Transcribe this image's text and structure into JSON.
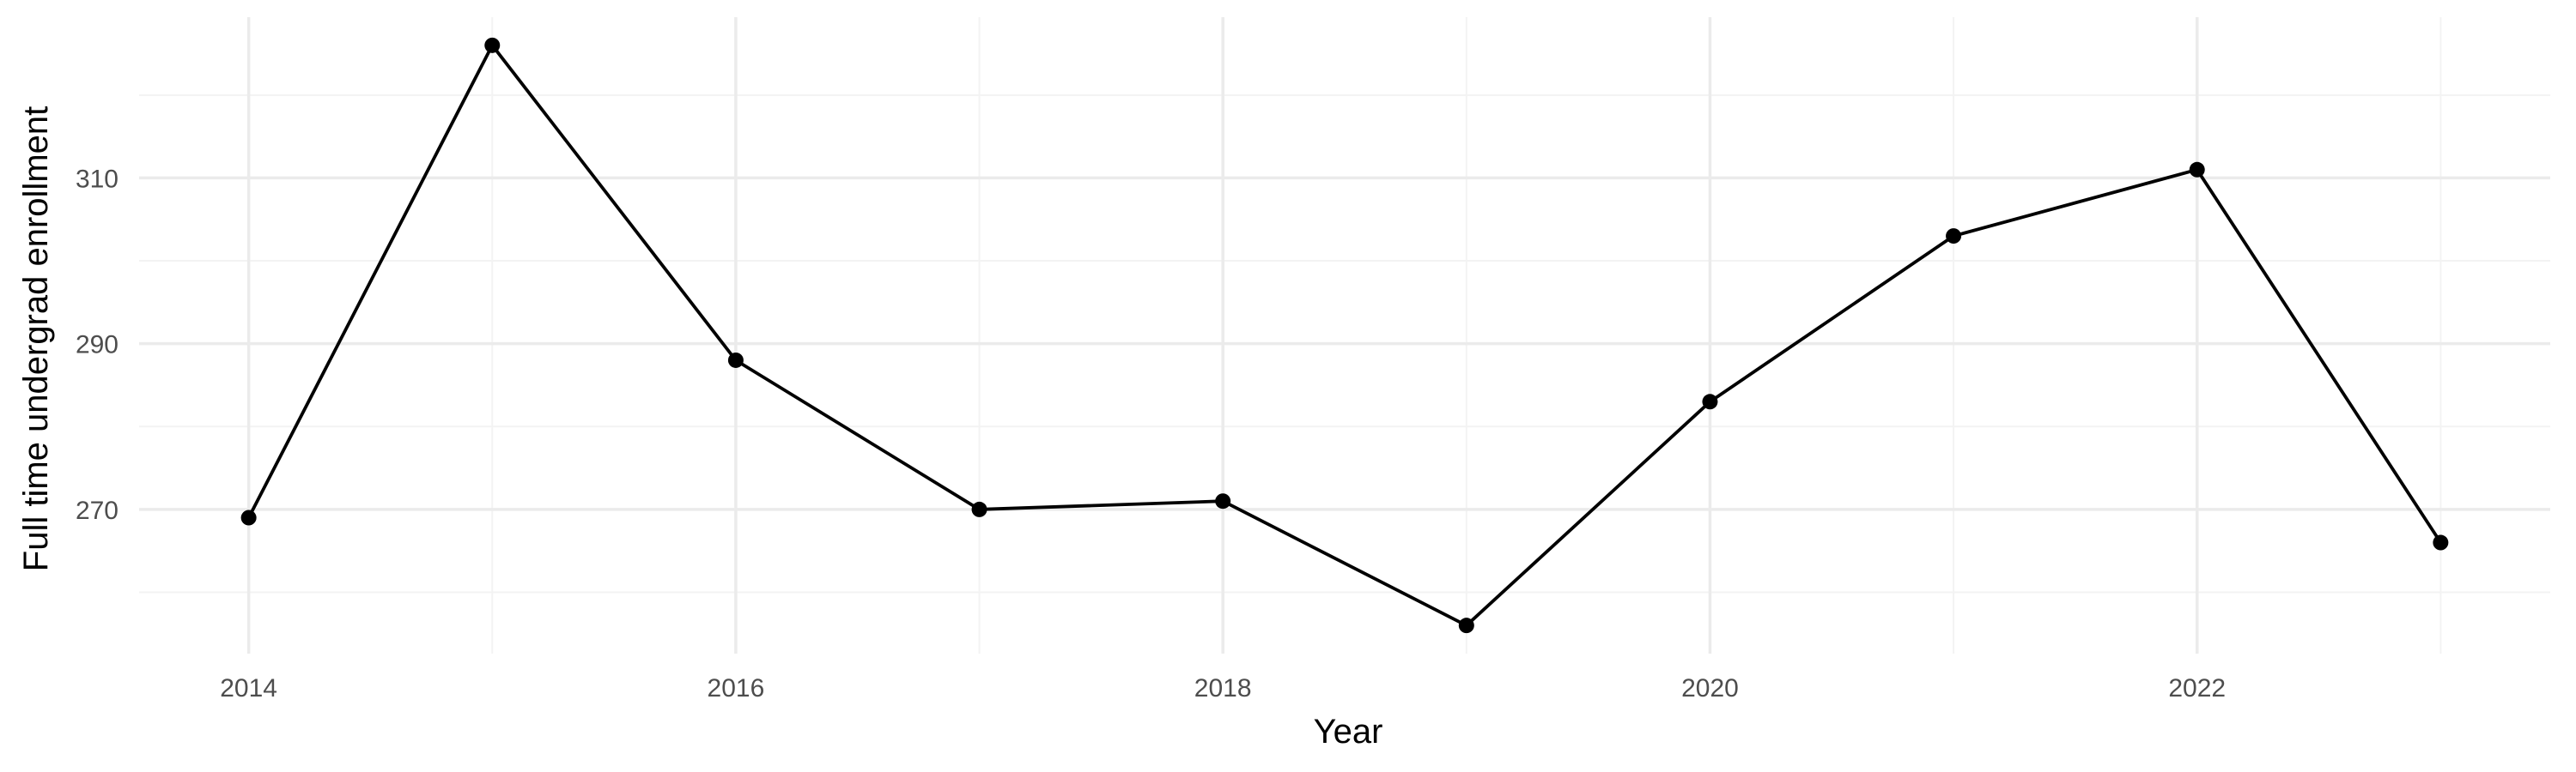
{
  "chart_data": {
    "type": "line",
    "xlabel": "Year",
    "ylabel": "Full time undergrad enrollment",
    "x": [
      2014,
      2015,
      2016,
      2017,
      2018,
      2019,
      2020,
      2021,
      2022,
      2023
    ],
    "series": [
      {
        "values": [
          269,
          326,
          288,
          270,
          271,
          256,
          283,
          303,
          311,
          266
        ]
      }
    ],
    "xlim": [
      2013.55,
      2023.45
    ],
    "ylim": [
      252.6,
      329.4
    ],
    "x_ticks": [
      2014,
      2016,
      2018,
      2020,
      2022
    ],
    "x_tick_labels": [
      "2014",
      "2016",
      "2018",
      "2020",
      "2022"
    ],
    "y_ticks": [
      270,
      290,
      310
    ],
    "y_tick_labels": [
      "270",
      "290",
      "310"
    ],
    "grid": true,
    "legend": "none",
    "line_color": "#000000"
  }
}
